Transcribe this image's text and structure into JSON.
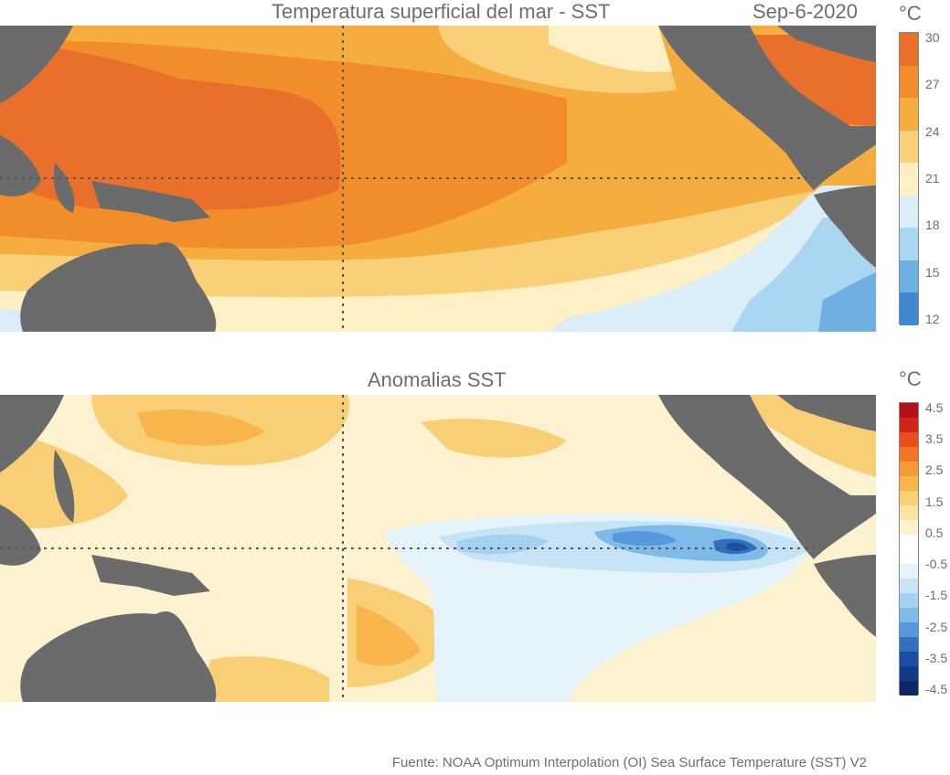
{
  "top_panel": {
    "title": "Temperatura superficial del mar - SST",
    "date": "Sep-6-2020",
    "unit": "°C",
    "colorbar": {
      "ticks": [
        "30",
        "27",
        "24",
        "21",
        "18",
        "15",
        "12"
      ],
      "colors": [
        "#e8702a",
        "#f28d2c",
        "#f6ad3f",
        "#f9d077",
        "#fdf0c4",
        "#dbeef7",
        "#a9d6f1",
        "#6fb0e3",
        "#3f89d0"
      ]
    }
  },
  "bottom_panel": {
    "title": "Anomalias SST",
    "unit": "°C",
    "colorbar": {
      "ticks": [
        "4.5",
        "3.5",
        "2.5",
        "1.5",
        "0.5",
        "-0.5",
        "-1.5",
        "-2.5",
        "-3.5",
        "-4.5"
      ],
      "colors": [
        "#b3101a",
        "#d2231b",
        "#e84d1f",
        "#f27427",
        "#f59a35",
        "#f7b54c",
        "#f9cf75",
        "#fbe3a3",
        "#fdf2cf",
        "#ffffff",
        "#ffffff",
        "#e5f3fb",
        "#c7e4f6",
        "#a5d2f1",
        "#7fbbe9",
        "#5599da",
        "#3270c2",
        "#1b4fa6",
        "#123a85",
        "#0c2764"
      ]
    }
  },
  "footer": {
    "source": "Fuente: NOAA Optimum Interpolation (OI) Sea Surface Temperature (SST) V2"
  },
  "colors": {
    "land": "#6b6b6b",
    "grid_line": "#555555"
  }
}
